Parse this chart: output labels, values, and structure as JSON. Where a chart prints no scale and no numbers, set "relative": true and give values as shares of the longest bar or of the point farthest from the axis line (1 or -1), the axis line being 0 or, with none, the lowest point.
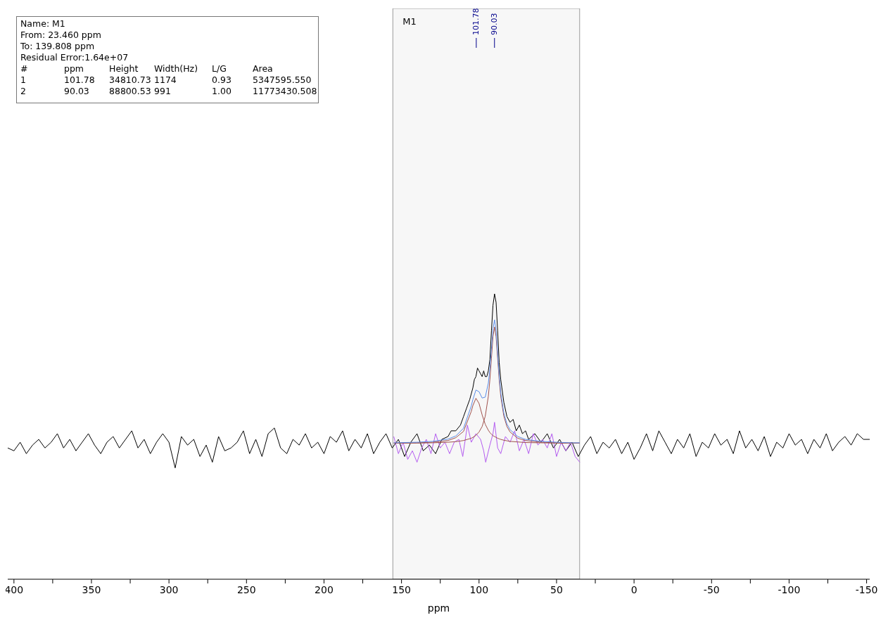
{
  "chart_data": {
    "type": "line",
    "xlabel": "ppm",
    "relative": true,
    "tick_labels": "x",
    "grid": false,
    "xlim": [
      404,
      -152
    ],
    "xticks": [
      400,
      {
        "value": 375,
        "label": null
      },
      350,
      {
        "value": 325,
        "label": null
      },
      300,
      {
        "value": 275,
        "label": null
      },
      250,
      {
        "value": 225,
        "label": null
      },
      200,
      {
        "value": 175,
        "label": null
      },
      150,
      {
        "value": 125,
        "label": null
      },
      100,
      {
        "value": 75,
        "label": null
      },
      50,
      {
        "value": 25,
        "label": null
      },
      0,
      {
        "value": -25,
        "label": null
      },
      -50,
      {
        "value": -75,
        "label": null
      },
      -100,
      {
        "value": -125,
        "label": null
      },
      -150
    ],
    "bands": [
      {
        "axis": "x",
        "from": 155.6,
        "to": 35.1,
        "label": "M1",
        "color": "#f7f7f7"
      }
    ],
    "annotations": [
      "Name: M1",
      "From: 23.460 ppm",
      "To: 139.808 ppm",
      "Residual Error:1.64e+07",
      "#\tppm\tHeight\tWidth(Hz)\tL/G\tArea",
      "1\t101.78\t34810.73\t1174\t0.93\t5347595.550",
      "2\t90.03\t88800.53\t991\t1.00\t11773430.508",
      {
        "text": "101.78",
        "x": 101.78
      },
      {
        "text": "90.03",
        "x": 90.03
      }
    ],
    "series": [
      {
        "color": "#000000",
        "x": [
          404,
          400,
          396,
          392,
          388,
          384,
          380,
          376,
          372,
          368,
          364,
          360,
          356,
          352,
          348,
          344,
          340,
          336,
          332,
          328,
          324,
          320,
          316,
          312,
          308,
          304,
          300,
          296,
          292,
          288,
          284,
          280,
          276,
          272,
          268,
          264,
          260,
          256,
          252,
          248,
          244,
          240,
          236,
          232,
          228,
          224,
          220,
          216,
          212,
          208,
          204,
          200,
          196,
          192,
          188,
          184,
          180,
          176,
          172,
          168,
          164,
          160,
          156,
          152,
          148,
          144,
          140,
          136,
          132,
          128,
          124,
          120,
          118,
          115,
          112,
          110,
          108,
          106,
          104,
          103,
          102,
          101,
          100,
          99,
          98,
          97,
          96,
          95,
          94,
          93,
          92,
          91,
          90,
          89,
          88,
          87,
          86,
          84,
          82,
          80,
          78,
          76,
          74,
          72,
          70,
          68,
          64,
          60,
          56,
          52,
          48,
          44,
          40,
          36,
          32,
          28,
          24,
          20,
          16,
          12,
          8,
          4,
          0,
          -4,
          -8,
          -12,
          -16,
          -20,
          -24,
          -28,
          -32,
          -36,
          -40,
          -44,
          -48,
          -52,
          -56,
          -60,
          -64,
          -68,
          -72,
          -76,
          -80,
          -84,
          -88,
          -92,
          -96,
          -100,
          -104,
          -108,
          -112,
          -116,
          -120,
          -124,
          -128,
          -132,
          -136,
          -140,
          -144,
          -148,
          -152
        ],
        "values": [
          0.46,
          0.45,
          0.48,
          0.44,
          0.47,
          0.49,
          0.46,
          0.48,
          0.51,
          0.46,
          0.49,
          0.45,
          0.48,
          0.51,
          0.47,
          0.44,
          0.48,
          0.5,
          0.46,
          0.49,
          0.52,
          0.46,
          0.49,
          0.44,
          0.48,
          0.51,
          0.48,
          0.39,
          0.5,
          0.47,
          0.49,
          0.43,
          0.47,
          0.41,
          0.5,
          0.45,
          0.46,
          0.48,
          0.52,
          0.44,
          0.49,
          0.43,
          0.51,
          0.53,
          0.46,
          0.44,
          0.49,
          0.47,
          0.51,
          0.46,
          0.48,
          0.44,
          0.5,
          0.48,
          0.52,
          0.45,
          0.49,
          0.46,
          0.51,
          0.44,
          0.48,
          0.51,
          0.46,
          0.49,
          0.43,
          0.48,
          0.51,
          0.45,
          0.47,
          0.44,
          0.49,
          0.5,
          0.52,
          0.52,
          0.54,
          0.57,
          0.6,
          0.63,
          0.67,
          0.7,
          0.71,
          0.74,
          0.73,
          0.72,
          0.71,
          0.73,
          0.71,
          0.71,
          0.73,
          0.77,
          0.87,
          0.96,
          1.0,
          0.97,
          0.87,
          0.76,
          0.7,
          0.62,
          0.57,
          0.55,
          0.56,
          0.52,
          0.54,
          0.51,
          0.52,
          0.49,
          0.51,
          0.48,
          0.51,
          0.46,
          0.49,
          0.45,
          0.48,
          0.43,
          0.47,
          0.5,
          0.44,
          0.48,
          0.46,
          0.49,
          0.44,
          0.48,
          0.42,
          0.46,
          0.51,
          0.45,
          0.52,
          0.48,
          0.44,
          0.49,
          0.46,
          0.51,
          0.43,
          0.48,
          0.46,
          0.51,
          0.47,
          0.49,
          0.44,
          0.52,
          0.46,
          0.49,
          0.45,
          0.5,
          0.43,
          0.48,
          0.46,
          0.51,
          0.47,
          0.49,
          0.44,
          0.49,
          0.46,
          0.51,
          0.45,
          0.48,
          0.5,
          0.47,
          0.51,
          0.49,
          0.49
        ]
      },
      {
        "color": "#b45cf0",
        "x": [
          155,
          152,
          149,
          146,
          143,
          140,
          137,
          134,
          131,
          128,
          125,
          122,
          119,
          116,
          113,
          110.5,
          107.5,
          105,
          102,
          99,
          97,
          95.7,
          93,
          91,
          90,
          88,
          86,
          83,
          80,
          77,
          74,
          71,
          68,
          65,
          62,
          59,
          56,
          53,
          50,
          47,
          44,
          41,
          38,
          35
        ],
        "values": [
          0.5,
          0.44,
          0.48,
          0.42,
          0.45,
          0.41,
          0.46,
          0.49,
          0.44,
          0.51,
          0.46,
          0.48,
          0.44,
          0.48,
          0.49,
          0.43,
          0.54,
          0.48,
          0.51,
          0.49,
          0.45,
          0.41,
          0.47,
          0.51,
          0.55,
          0.46,
          0.44,
          0.5,
          0.48,
          0.52,
          0.45,
          0.49,
          0.44,
          0.51,
          0.47,
          0.49,
          0.46,
          0.51,
          0.43,
          0.48,
          0.45,
          0.48,
          0.43,
          0.41
        ]
      },
      {
        "color": "#a0524d",
        "x": [
          155,
          140,
          130,
          120,
          115,
          110,
          105,
          104,
          102,
          100,
          98,
          96,
          94,
          93,
          92,
          91,
          90,
          89,
          88,
          87,
          86,
          84,
          82,
          80,
          75,
          70,
          60,
          50,
          40,
          35
        ],
        "values": [
          0.477,
          0.478,
          0.48,
          0.486,
          0.496,
          0.518,
          0.588,
          0.608,
          0.634,
          0.616,
          0.576,
          0.543,
          0.522,
          0.514,
          0.508,
          0.503,
          0.5,
          0.497,
          0.494,
          0.492,
          0.49,
          0.487,
          0.485,
          0.483,
          0.481,
          0.479,
          0.478,
          0.477,
          0.477,
          0.477
        ]
      },
      {
        "color": "#a0524d",
        "x": [
          155,
          140,
          130,
          120,
          115,
          110,
          105,
          104,
          102,
          100,
          98,
          96,
          94,
          93,
          92,
          91,
          90,
          89,
          88,
          87,
          86,
          84,
          82,
          80,
          75,
          70,
          60,
          50,
          40,
          35
        ],
        "values": [
          0.477,
          0.477,
          0.478,
          0.48,
          0.482,
          0.486,
          0.494,
          0.497,
          0.504,
          0.516,
          0.535,
          0.571,
          0.641,
          0.699,
          0.774,
          0.85,
          0.884,
          0.85,
          0.774,
          0.699,
          0.641,
          0.571,
          0.535,
          0.516,
          0.494,
          0.486,
          0.48,
          0.478,
          0.477,
          0.477
        ]
      },
      {
        "color": "#5b8de8",
        "x": [
          155,
          140,
          130,
          120,
          115,
          110,
          105,
          104,
          102,
          100,
          98,
          96,
          94,
          93,
          92,
          91,
          90,
          89,
          88,
          87,
          86,
          84,
          82,
          80,
          75,
          70,
          60,
          50,
          40,
          35
        ],
        "values": [
          0.478,
          0.48,
          0.483,
          0.491,
          0.502,
          0.529,
          0.607,
          0.629,
          0.663,
          0.657,
          0.635,
          0.638,
          0.687,
          0.738,
          0.807,
          0.878,
          0.909,
          0.871,
          0.793,
          0.716,
          0.655,
          0.582,
          0.544,
          0.524,
          0.5,
          0.49,
          0.483,
          0.48,
          0.478,
          0.478
        ]
      }
    ]
  }
}
